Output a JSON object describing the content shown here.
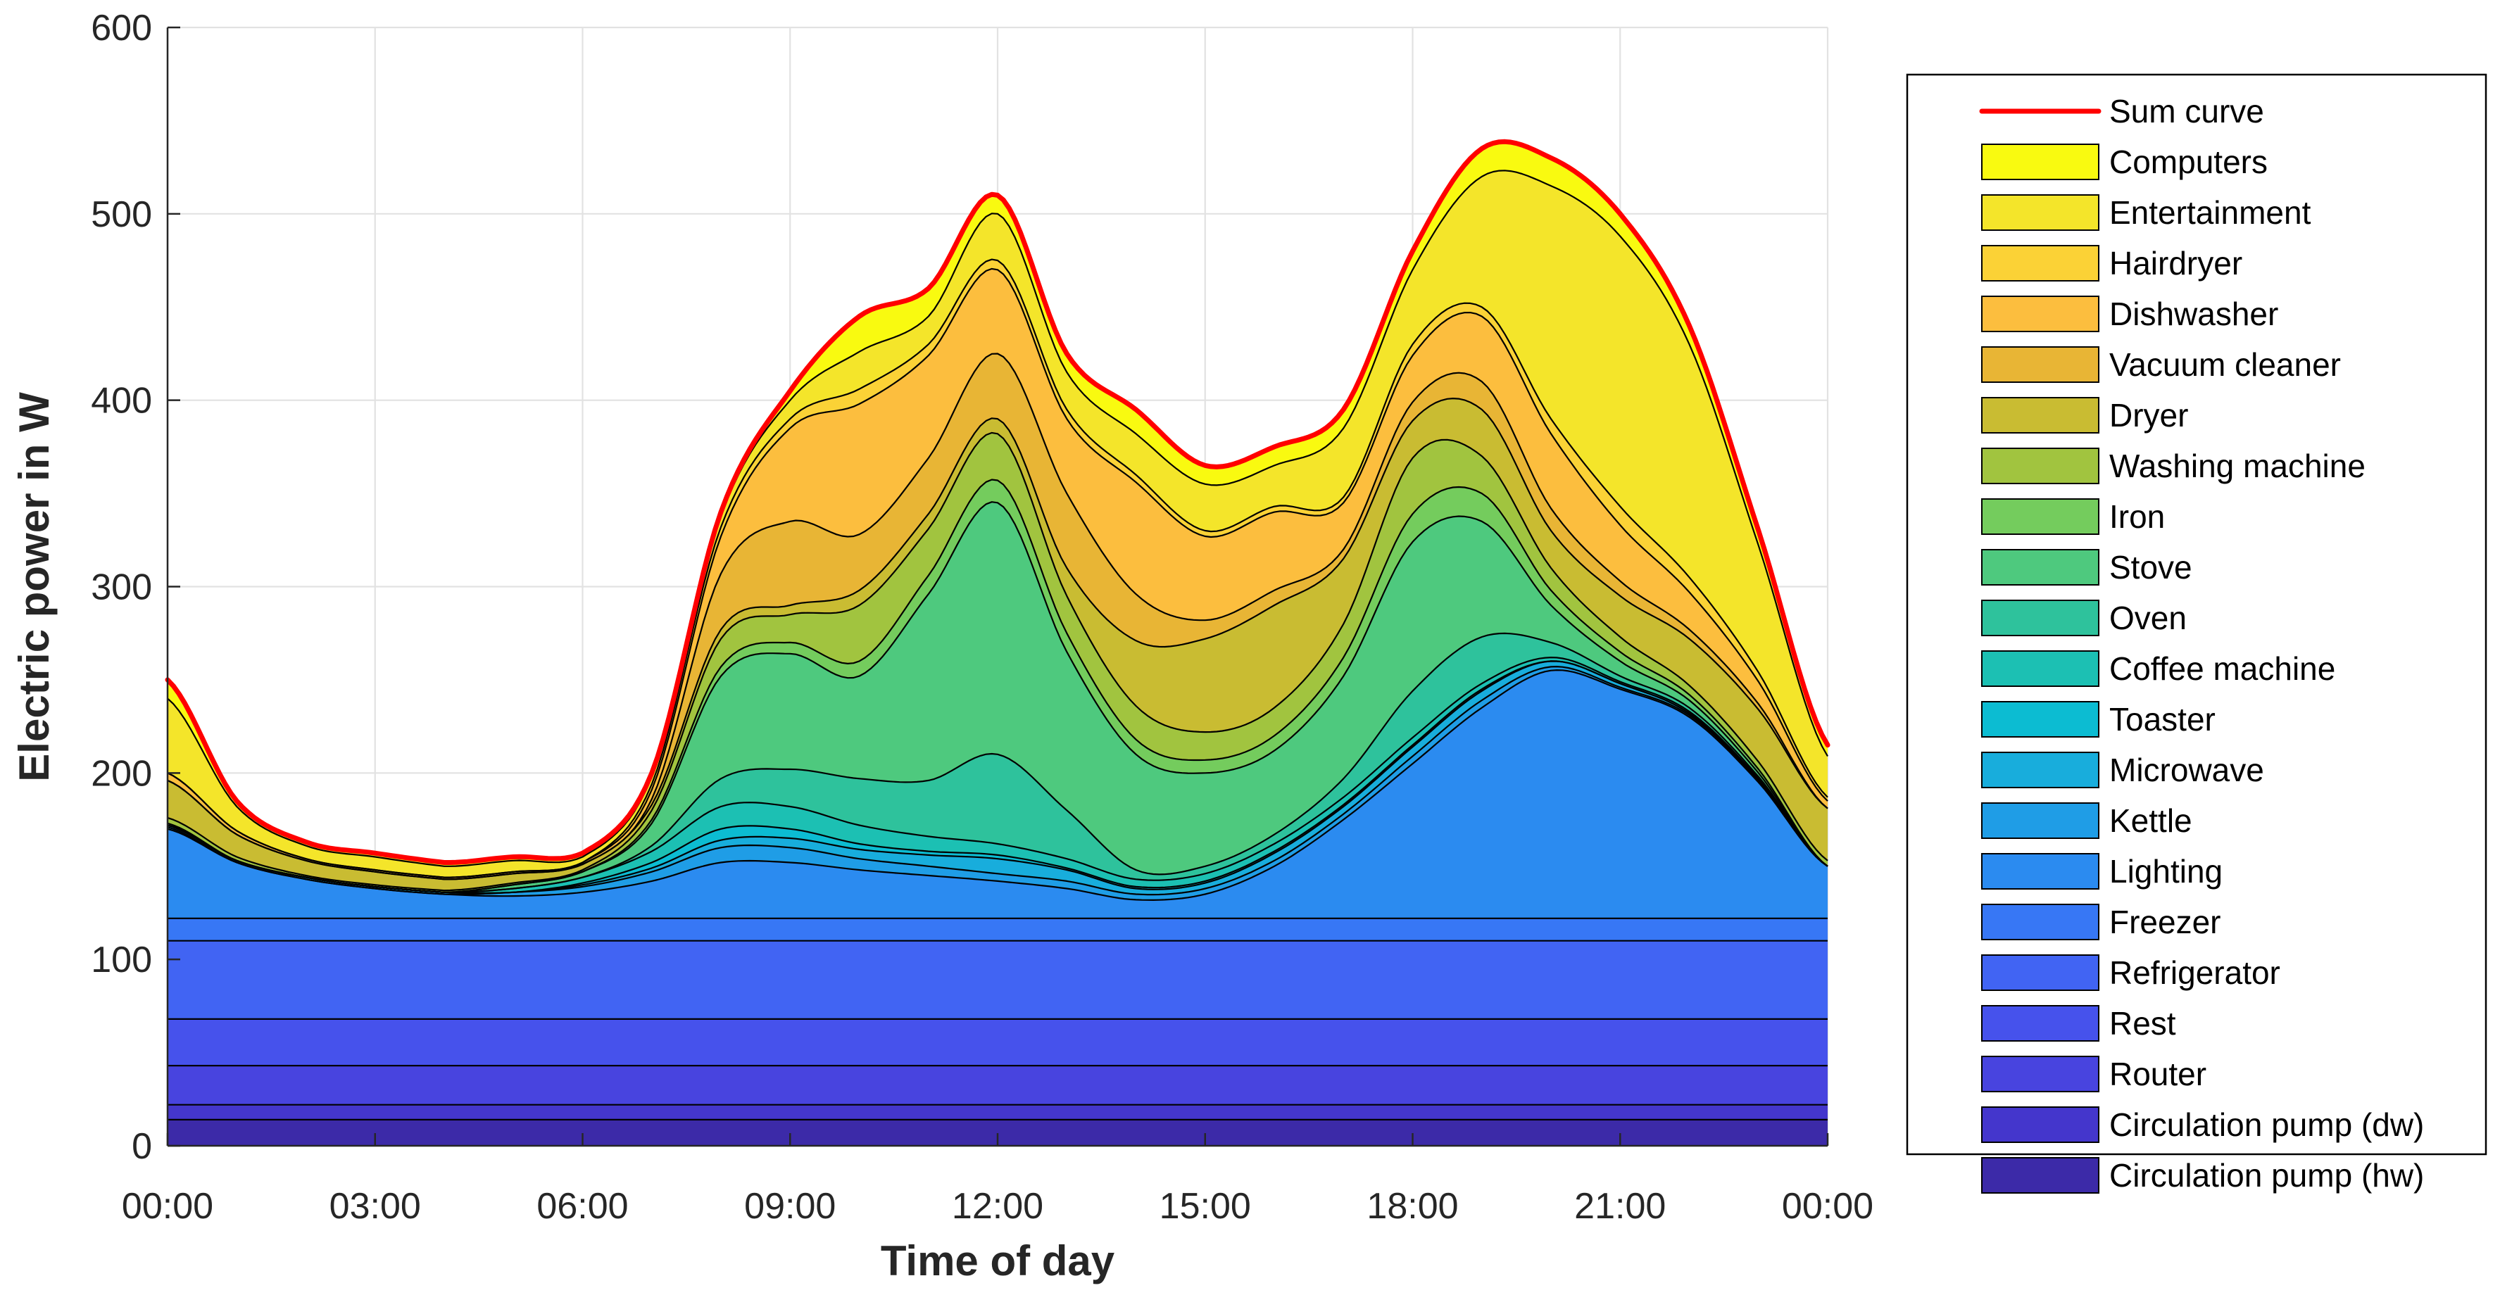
{
  "chart_data": {
    "type": "area",
    "stacked": true,
    "title": "",
    "xlabel": "Time of day",
    "ylabel": "Electric power in W",
    "xlim": [
      0,
      24
    ],
    "ylim": [
      0,
      600
    ],
    "grid": true,
    "legend_position": "right",
    "x": [
      0,
      1,
      2,
      3,
      4,
      5,
      6,
      7,
      8,
      9,
      10,
      11,
      12,
      13,
      14,
      15,
      16,
      17,
      18,
      19,
      20,
      21,
      22,
      23,
      24
    ],
    "xticks": [
      0,
      3,
      6,
      9,
      12,
      15,
      18,
      21,
      24
    ],
    "xtick_labels": [
      "00:00",
      "03:00",
      "06:00",
      "09:00",
      "12:00",
      "15:00",
      "18:00",
      "21:00",
      "00:00"
    ],
    "yticks": [
      0,
      100,
      200,
      300,
      400,
      500,
      600
    ],
    "sum_curve": {
      "name": "Sum curve",
      "color": "#FF0000"
    },
    "series": [
      {
        "name": "Circulation pump (hw)",
        "color": "#3C2AA8",
        "values": [
          14,
          14,
          14,
          14,
          14,
          14,
          14,
          14,
          14,
          14,
          14,
          14,
          14,
          14,
          14,
          14,
          14,
          14,
          14,
          14,
          14,
          14,
          14,
          14,
          14
        ]
      },
      {
        "name": "Circulation pump (dw)",
        "color": "#4436CC",
        "values": [
          8,
          8,
          8,
          8,
          8,
          8,
          8,
          8,
          8,
          8,
          8,
          8,
          8,
          8,
          8,
          8,
          8,
          8,
          8,
          8,
          8,
          8,
          8,
          8,
          8
        ]
      },
      {
        "name": "Router",
        "color": "#4844DF",
        "values": [
          21,
          21,
          21,
          21,
          21,
          21,
          21,
          21,
          21,
          21,
          21,
          21,
          21,
          21,
          21,
          21,
          21,
          21,
          21,
          21,
          21,
          21,
          21,
          21,
          21
        ]
      },
      {
        "name": "Rest",
        "color": "#4652EC",
        "values": [
          25,
          25,
          25,
          25,
          25,
          25,
          25,
          25,
          25,
          25,
          25,
          25,
          25,
          25,
          25,
          25,
          25,
          25,
          25,
          25,
          25,
          25,
          25,
          25,
          25
        ]
      },
      {
        "name": "Refrigerator",
        "color": "#4164F3",
        "values": [
          42,
          42,
          42,
          42,
          42,
          42,
          42,
          42,
          42,
          42,
          42,
          42,
          42,
          42,
          42,
          42,
          42,
          42,
          42,
          42,
          42,
          42,
          42,
          42,
          42
        ]
      },
      {
        "name": "Freezer",
        "color": "#3777F5",
        "values": [
          12,
          12,
          12,
          12,
          12,
          12,
          12,
          12,
          12,
          12,
          12,
          12,
          12,
          12,
          12,
          12,
          12,
          12,
          12,
          12,
          12,
          12,
          12,
          12,
          12
        ]
      },
      {
        "name": "Lighting",
        "color": "#2B8BF0",
        "values": [
          48,
          30,
          21,
          16,
          13,
          12,
          14,
          20,
          30,
          30,
          26,
          23,
          20,
          16,
          10,
          13,
          28,
          53,
          83,
          113,
          133,
          123,
          108,
          73,
          28
        ]
      },
      {
        "name": "Kettle",
        "color": "#1F9DE6",
        "values": [
          1,
          0,
          0,
          0,
          0,
          2,
          3,
          5,
          8,
          8,
          6,
          5,
          4,
          4,
          3,
          3,
          3,
          3,
          4,
          4,
          2,
          1,
          1,
          1,
          0
        ]
      },
      {
        "name": "Microwave",
        "color": "#18ADDC",
        "values": [
          1,
          1,
          1,
          1,
          1,
          0,
          1,
          2,
          4,
          5,
          5,
          6,
          8,
          6,
          3,
          3,
          4,
          4,
          5,
          5,
          3,
          2,
          1,
          1,
          0
        ]
      },
      {
        "name": "Toaster",
        "color": "#0CBCD2",
        "values": [
          0,
          0,
          0,
          0,
          0,
          0,
          1,
          3,
          6,
          5,
          3,
          2,
          2,
          1,
          1,
          1,
          1,
          1,
          1,
          1,
          0,
          0,
          0,
          0,
          0
        ]
      },
      {
        "name": "Coffee machine",
        "color": "#1CC0B3",
        "values": [
          0,
          0,
          0,
          0,
          0,
          2,
          3,
          6,
          12,
          12,
          10,
          8,
          6,
          5,
          4,
          4,
          4,
          4,
          4,
          3,
          2,
          1,
          1,
          0,
          0
        ]
      },
      {
        "name": "Oven",
        "color": "#2EC29C",
        "values": [
          0,
          0,
          0,
          0,
          0,
          0,
          0,
          3,
          15,
          20,
          25,
          30,
          48,
          26,
          5,
          4,
          5,
          10,
          25,
          25,
          8,
          3,
          2,
          1,
          0
        ]
      },
      {
        "name": "Stove",
        "color": "#4EC97E",
        "values": [
          1,
          0,
          0,
          0,
          0,
          2,
          3,
          12,
          55,
          62,
          55,
          100,
          135,
          85,
          62,
          50,
          45,
          55,
          80,
          62,
          20,
          8,
          4,
          2,
          0
        ]
      },
      {
        "name": "Iron",
        "color": "#74CC5D",
        "values": [
          0,
          0,
          0,
          0,
          0,
          0,
          0,
          2,
          5,
          6,
          8,
          10,
          12,
          10,
          8,
          7,
          8,
          10,
          15,
          15,
          8,
          5,
          3,
          2,
          0
        ]
      },
      {
        "name": "Washing machine",
        "color": "#A1C43F",
        "values": [
          3,
          2,
          1,
          1,
          1,
          1,
          1,
          5,
          15,
          15,
          30,
          25,
          25,
          20,
          18,
          15,
          15,
          18,
          30,
          20,
          12,
          8,
          5,
          4,
          3
        ]
      },
      {
        "name": "Dryer",
        "color": "#C9BC32",
        "values": [
          20,
          12,
          8,
          7,
          6,
          5,
          3,
          3,
          5,
          5,
          8,
          8,
          8,
          15,
          35,
          50,
          55,
          35,
          20,
          25,
          20,
          22,
          25,
          28,
          28
        ]
      },
      {
        "name": "Vacuum cleaner",
        "color": "#E8B535",
        "values": [
          0,
          0,
          0,
          0,
          0,
          0,
          0,
          3,
          30,
          45,
          30,
          30,
          35,
          40,
          25,
          10,
          8,
          5,
          10,
          15,
          12,
          8,
          5,
          3,
          0
        ]
      },
      {
        "name": "Dishwasher",
        "color": "#FCBE3E",
        "values": [
          4,
          2,
          1,
          1,
          1,
          1,
          1,
          5,
          20,
          50,
          70,
          55,
          45,
          40,
          60,
          45,
          42,
          25,
          25,
          35,
          40,
          30,
          20,
          12,
          4
        ]
      },
      {
        "name": "Hairdryer",
        "color": "#FBD236",
        "values": [
          0,
          0,
          0,
          0,
          0,
          0,
          0,
          3,
          5,
          5,
          8,
          6,
          5,
          5,
          4,
          3,
          3,
          3,
          6,
          5,
          8,
          10,
          8,
          5,
          2
        ]
      },
      {
        "name": "Entertainment",
        "color": "#F4E52A",
        "values": [
          40,
          13,
          7,
          7,
          6,
          6,
          3,
          4,
          6,
          10,
          20,
          15,
          25,
          20,
          22,
          25,
          22,
          37,
          40,
          70,
          125,
          145,
          125,
          68,
          22
        ]
      },
      {
        "name": "Computers",
        "color": "#F9FA10",
        "values": [
          10,
          3,
          2,
          2,
          2,
          2,
          2,
          2,
          2,
          5,
          19,
          15,
          10,
          10,
          13,
          10,
          10,
          10,
          10,
          15,
          15,
          12,
          10,
          8,
          6
        ]
      }
    ]
  }
}
